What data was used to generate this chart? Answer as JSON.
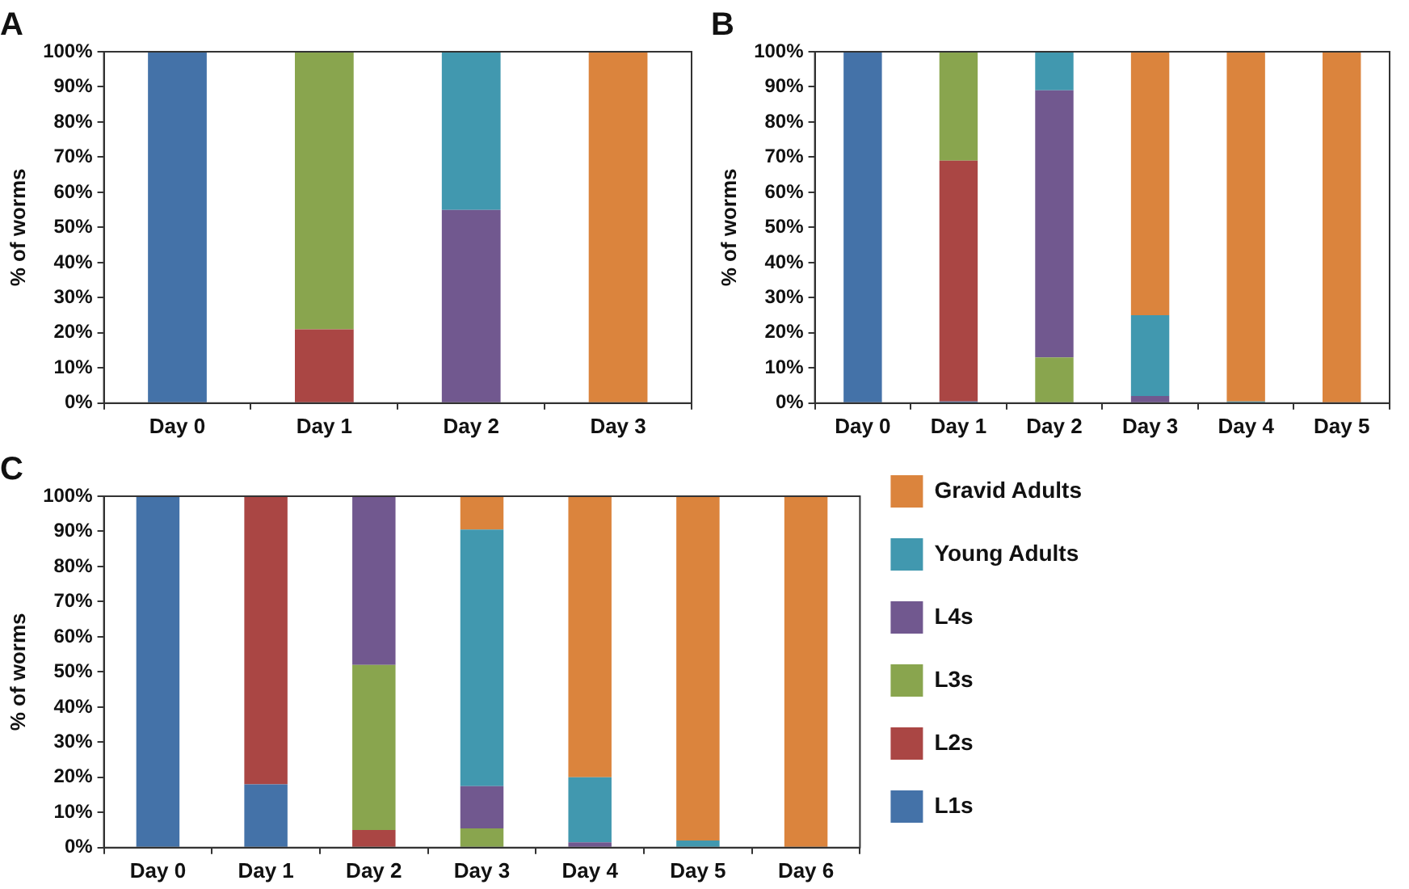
{
  "chart_data": [
    {
      "type": "bar",
      "title": "A",
      "ylabel": "% of worms",
      "stacked": true,
      "grid": false,
      "legend": false,
      "categories": [
        "Day 0",
        "Day 1",
        "Day 2",
        "Day 3"
      ],
      "ylim": [
        0,
        100
      ],
      "yticks": [
        {
          "value": 0,
          "label": "0%"
        },
        {
          "value": 10,
          "label": "10%"
        },
        {
          "value": 20,
          "label": "20%"
        },
        {
          "value": 30,
          "label": "30%"
        },
        {
          "value": 40,
          "label": "40%"
        },
        {
          "value": 50,
          "label": "50%"
        },
        {
          "value": 60,
          "label": "60%"
        },
        {
          "value": 70,
          "label": "70%"
        },
        {
          "value": 80,
          "label": "80%"
        },
        {
          "value": 90,
          "label": "90%"
        },
        {
          "value": 100,
          "label": "100%"
        }
      ],
      "series": [
        {
          "color": "#4472a8",
          "values": [
            100,
            0,
            0,
            0
          ]
        },
        {
          "color": "#aa4644",
          "values": [
            0,
            21,
            0,
            0
          ]
        },
        {
          "color": "#89a54e",
          "values": [
            0,
            79,
            0,
            0
          ]
        },
        {
          "color": "#71588f",
          "values": [
            0,
            0,
            55,
            0
          ]
        },
        {
          "color": "#4198af",
          "values": [
            0,
            0,
            45,
            0
          ]
        },
        {
          "color": "#db843d",
          "values": [
            0,
            0,
            0,
            100
          ]
        }
      ]
    },
    {
      "type": "bar",
      "title": "B",
      "ylabel": "% of worms",
      "stacked": true,
      "grid": false,
      "legend": false,
      "categories": [
        "Day 0",
        "Day 1",
        "Day 2",
        "Day 3",
        "Day 4",
        "Day 5"
      ],
      "ylim": [
        0,
        100
      ],
      "yticks": [
        {
          "value": 0,
          "label": "0%"
        },
        {
          "value": 10,
          "label": "10%"
        },
        {
          "value": 20,
          "label": "20%"
        },
        {
          "value": 30,
          "label": "30%"
        },
        {
          "value": 40,
          "label": "40%"
        },
        {
          "value": 50,
          "label": "50%"
        },
        {
          "value": 60,
          "label": "60%"
        },
        {
          "value": 70,
          "label": "70%"
        },
        {
          "value": 80,
          "label": "80%"
        },
        {
          "value": 90,
          "label": "90%"
        },
        {
          "value": 100,
          "label": "100%"
        }
      ],
      "series": [
        {
          "color": "#4472a8",
          "values": [
            100,
            0.5,
            0,
            0,
            0,
            0
          ]
        },
        {
          "color": "#aa4644",
          "values": [
            0,
            68.5,
            0,
            0,
            0,
            0
          ]
        },
        {
          "color": "#89a54e",
          "values": [
            0,
            31,
            13,
            0,
            0,
            0
          ]
        },
        {
          "color": "#71588f",
          "values": [
            0,
            0,
            76,
            2,
            0,
            0
          ]
        },
        {
          "color": "#4198af",
          "values": [
            0,
            0,
            11,
            23,
            0.5,
            0
          ]
        },
        {
          "color": "#db843d",
          "values": [
            0,
            0,
            0,
            75,
            99.5,
            100
          ]
        }
      ]
    },
    {
      "type": "bar",
      "title": "C",
      "ylabel": "% of worms",
      "stacked": true,
      "grid": false,
      "legend": "right",
      "categories": [
        "Day 0",
        "Day 1",
        "Day 2",
        "Day 3",
        "Day 4",
        "Day 5",
        "Day 6"
      ],
      "ylim": [
        0,
        100
      ],
      "yticks": [
        {
          "value": 0,
          "label": "0%"
        },
        {
          "value": 10,
          "label": "10%"
        },
        {
          "value": 20,
          "label": "20%"
        },
        {
          "value": 30,
          "label": "30%"
        },
        {
          "value": 40,
          "label": "40%"
        },
        {
          "value": 50,
          "label": "50%"
        },
        {
          "value": 60,
          "label": "60%"
        },
        {
          "value": 70,
          "label": "70%"
        },
        {
          "value": 80,
          "label": "80%"
        },
        {
          "value": 90,
          "label": "90%"
        },
        {
          "value": 100,
          "label": "100%"
        }
      ],
      "series": [
        {
          "name": "L1s",
          "color": "#4472a8",
          "values": [
            100,
            18,
            0,
            0,
            0,
            0,
            0
          ]
        },
        {
          "name": "L2s",
          "color": "#aa4644",
          "values": [
            0,
            82,
            5,
            0,
            0,
            0,
            0
          ]
        },
        {
          "name": "L3s",
          "color": "#89a54e",
          "values": [
            0,
            0,
            47,
            5.5,
            0,
            0,
            0
          ]
        },
        {
          "name": "L4s",
          "color": "#71588f",
          "values": [
            0,
            0,
            48,
            12,
            1.5,
            0,
            0
          ]
        },
        {
          "name": "Young Adults",
          "color": "#4198af",
          "values": [
            0,
            0,
            0,
            73,
            18.5,
            2,
            0
          ]
        },
        {
          "name": "Gravid Adults",
          "color": "#db843d",
          "values": [
            0,
            0,
            0,
            9.5,
            80,
            98,
            100
          ]
        }
      ]
    }
  ]
}
